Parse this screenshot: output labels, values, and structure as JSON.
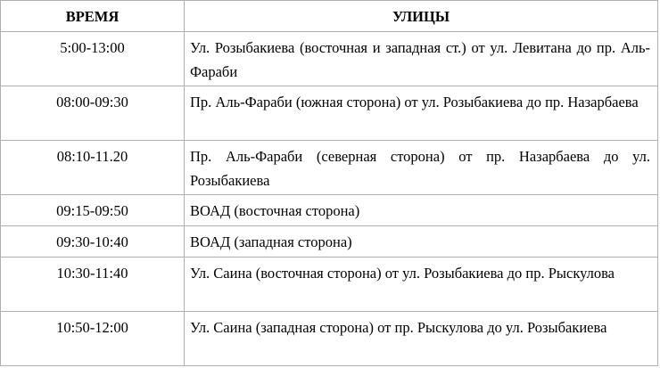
{
  "table": {
    "headers": [
      "ВРЕМЯ",
      "УЛИЦЫ"
    ],
    "rows": [
      {
        "time": "5:00-13:00",
        "street": "Ул. Розыбакиева (восточная и западная ст.) от ул. Левитана до пр. Аль-Фараби"
      },
      {
        "time": "08:00-09:30",
        "street": "Пр. Аль-Фараби (южная сторона) от ул. Розыбакиева до пр. Назарбаева"
      },
      {
        "time": "08:10-11.20",
        "street": "Пр. Аль-Фараби (северная сторона) от пр. Назарбаева до ул. Розыбакиева"
      },
      {
        "time": "09:15-09:50",
        "street": "ВОАД (восточная сторона)"
      },
      {
        "time": "09:30-10:40",
        "street": "ВОАД (западная сторона)"
      },
      {
        "time": "10:30-11:40",
        "street": "Ул. Саина (восточная сторона) от ул. Розыбакиева до пр. Рыскулова"
      },
      {
        "time": "10:50-12:00",
        "street": "Ул. Саина (западная сторона) от пр. Рыскулова до ул. Розыбакиева"
      }
    ]
  }
}
